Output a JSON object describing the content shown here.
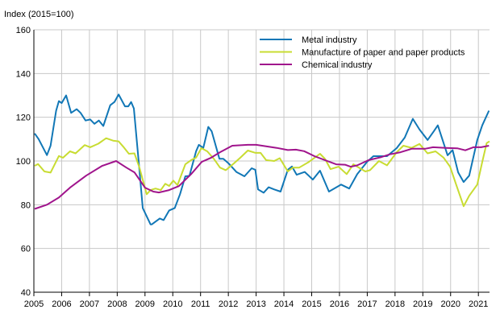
{
  "chart_data": {
    "type": "line",
    "title": "",
    "ylabel": "Index (2015=100)",
    "xlabel": "",
    "ylim": [
      40,
      160
    ],
    "yticks": [
      40,
      60,
      80,
      100,
      120,
      140,
      160
    ],
    "xlim": [
      2005,
      2021.4
    ],
    "xticks": [
      "2005",
      "2006",
      "2007",
      "2008",
      "2009",
      "2010",
      "2011",
      "2012",
      "2013",
      "2014",
      "2015",
      "2016",
      "2017",
      "2018",
      "2019",
      "2020",
      "2021"
    ],
    "grid": true,
    "legend_position": "top-right",
    "series": [
      {
        "name": "Metal industry",
        "color": "#1177b6",
        "points": [
          [
            2005.03,
            112.6
          ],
          [
            2005.17,
            110
          ],
          [
            2005.47,
            102.7
          ],
          [
            2005.6,
            107
          ],
          [
            2005.8,
            123
          ],
          [
            2005.9,
            127.4
          ],
          [
            2006.0,
            126.5
          ],
          [
            2006.16,
            130
          ],
          [
            2006.34,
            122
          ],
          [
            2006.54,
            123.7
          ],
          [
            2006.68,
            122
          ],
          [
            2006.86,
            118.5
          ],
          [
            2007.03,
            119
          ],
          [
            2007.18,
            117
          ],
          [
            2007.34,
            118.5
          ],
          [
            2007.5,
            116
          ],
          [
            2007.75,
            125.5
          ],
          [
            2007.9,
            127
          ],
          [
            2008.05,
            130.4
          ],
          [
            2008.28,
            125
          ],
          [
            2008.4,
            125
          ],
          [
            2008.5,
            127
          ],
          [
            2008.6,
            124
          ],
          [
            2008.77,
            100
          ],
          [
            2008.92,
            78.5
          ],
          [
            2009.2,
            71
          ],
          [
            2009.24,
            71
          ],
          [
            2009.53,
            73.7
          ],
          [
            2009.67,
            73
          ],
          [
            2009.87,
            77.4
          ],
          [
            2010.07,
            78.5
          ],
          [
            2010.26,
            84.8
          ],
          [
            2010.45,
            93
          ],
          [
            2010.6,
            93.2
          ],
          [
            2010.84,
            104.5
          ],
          [
            2010.94,
            107.4
          ],
          [
            2011.1,
            106
          ],
          [
            2011.28,
            115.6
          ],
          [
            2011.4,
            113.6
          ],
          [
            2011.68,
            101
          ],
          [
            2011.82,
            101
          ],
          [
            2012.0,
            99
          ],
          [
            2012.29,
            95
          ],
          [
            2012.58,
            93
          ],
          [
            2012.84,
            96.7
          ],
          [
            2012.97,
            96
          ],
          [
            2013.07,
            87
          ],
          [
            2013.27,
            85.5
          ],
          [
            2013.45,
            88
          ],
          [
            2013.65,
            87
          ],
          [
            2013.88,
            86
          ],
          [
            2014.14,
            96
          ],
          [
            2014.29,
            97.5
          ],
          [
            2014.46,
            93.7
          ],
          [
            2014.75,
            95
          ],
          [
            2015.04,
            91.5
          ],
          [
            2015.3,
            95.6
          ],
          [
            2015.62,
            86
          ],
          [
            2016.06,
            89.2
          ],
          [
            2016.35,
            87.4
          ],
          [
            2016.64,
            94
          ],
          [
            2016.99,
            99.6
          ],
          [
            2017.22,
            102.2
          ],
          [
            2017.71,
            102.2
          ],
          [
            2018.06,
            105.9
          ],
          [
            2018.35,
            110.7
          ],
          [
            2018.64,
            119.3
          ],
          [
            2018.88,
            114.4
          ],
          [
            2019.17,
            109.6
          ],
          [
            2019.4,
            113.7
          ],
          [
            2019.54,
            116.3
          ],
          [
            2019.89,
            102.6
          ],
          [
            2020.07,
            105
          ],
          [
            2020.27,
            94.8
          ],
          [
            2020.47,
            90.4
          ],
          [
            2020.67,
            93.3
          ],
          [
            2020.96,
            109.6
          ],
          [
            2021.14,
            116.3
          ],
          [
            2021.38,
            123
          ]
        ]
      },
      {
        "name": "Manufacture of paper and paper products",
        "color": "#c8dc32",
        "points": [
          [
            2005.03,
            97.8
          ],
          [
            2005.15,
            98.6
          ],
          [
            2005.38,
            95.2
          ],
          [
            2005.6,
            94.7
          ],
          [
            2005.9,
            102.3
          ],
          [
            2006.05,
            101.5
          ],
          [
            2006.3,
            104.4
          ],
          [
            2006.5,
            103.5
          ],
          [
            2006.83,
            107.3
          ],
          [
            2007.03,
            106.3
          ],
          [
            2007.32,
            107.9
          ],
          [
            2007.6,
            110.4
          ],
          [
            2007.85,
            109.3
          ],
          [
            2008.05,
            109
          ],
          [
            2008.22,
            106.5
          ],
          [
            2008.42,
            103.3
          ],
          [
            2008.62,
            103.5
          ],
          [
            2008.8,
            97
          ],
          [
            2009.06,
            84.8
          ],
          [
            2009.2,
            86.7
          ],
          [
            2009.38,
            87.4
          ],
          [
            2009.57,
            86.7
          ],
          [
            2009.73,
            89.6
          ],
          [
            2009.87,
            88.6
          ],
          [
            2010.02,
            91
          ],
          [
            2010.17,
            89
          ],
          [
            2010.45,
            98.5
          ],
          [
            2010.66,
            100.4
          ],
          [
            2010.84,
            101.6
          ],
          [
            2011.03,
            105.9
          ],
          [
            2011.24,
            104.4
          ],
          [
            2011.48,
            101
          ],
          [
            2011.7,
            97
          ],
          [
            2011.91,
            95.8
          ],
          [
            2012.2,
            98.9
          ],
          [
            2012.43,
            101.5
          ],
          [
            2012.7,
            104.8
          ],
          [
            2012.98,
            103.7
          ],
          [
            2013.16,
            103.7
          ],
          [
            2013.36,
            100.4
          ],
          [
            2013.65,
            100
          ],
          [
            2013.85,
            101.3
          ],
          [
            2014.14,
            95.2
          ],
          [
            2014.32,
            97
          ],
          [
            2014.55,
            97
          ],
          [
            2014.9,
            99.6
          ],
          [
            2015.3,
            103.3
          ],
          [
            2015.48,
            101
          ],
          [
            2015.68,
            96.3
          ],
          [
            2015.97,
            97.4
          ],
          [
            2016.26,
            94
          ],
          [
            2016.5,
            98.5
          ],
          [
            2016.93,
            95.2
          ],
          [
            2017.1,
            95.8
          ],
          [
            2017.42,
            100
          ],
          [
            2017.71,
            98
          ],
          [
            2018.06,
            104
          ],
          [
            2018.3,
            107
          ],
          [
            2018.6,
            106
          ],
          [
            2018.88,
            107.8
          ],
          [
            2019.17,
            103.5
          ],
          [
            2019.46,
            104.4
          ],
          [
            2019.75,
            101.5
          ],
          [
            2019.98,
            97.4
          ],
          [
            2020.19,
            89.6
          ],
          [
            2020.4,
            81.9
          ],
          [
            2020.47,
            79.3
          ],
          [
            2020.67,
            84.1
          ],
          [
            2020.96,
            89.2
          ],
          [
            2021.14,
            99.6
          ],
          [
            2021.3,
            108.2
          ],
          [
            2021.4,
            109
          ]
        ]
      },
      {
        "name": "Chemical industry",
        "color": "#a0148c",
        "points": [
          [
            2005.03,
            78.1
          ],
          [
            2005.47,
            80
          ],
          [
            2005.9,
            83.3
          ],
          [
            2006.3,
            87.8
          ],
          [
            2006.88,
            93.3
          ],
          [
            2007.46,
            97.8
          ],
          [
            2007.96,
            100
          ],
          [
            2008.33,
            97
          ],
          [
            2008.62,
            94.8
          ],
          [
            2009.0,
            87.8
          ],
          [
            2009.3,
            86
          ],
          [
            2009.5,
            85.6
          ],
          [
            2009.87,
            86.7
          ],
          [
            2010.22,
            88.5
          ],
          [
            2010.66,
            94
          ],
          [
            2011.04,
            99.6
          ],
          [
            2011.38,
            101.5
          ],
          [
            2011.7,
            104
          ],
          [
            2012.14,
            107
          ],
          [
            2012.7,
            107.4
          ],
          [
            2013.0,
            107.4
          ],
          [
            2013.36,
            106.7
          ],
          [
            2013.74,
            106
          ],
          [
            2014.14,
            105
          ],
          [
            2014.43,
            105.2
          ],
          [
            2014.73,
            104.5
          ],
          [
            2015.1,
            102.2
          ],
          [
            2015.48,
            100.4
          ],
          [
            2015.88,
            98.5
          ],
          [
            2016.2,
            98.3
          ],
          [
            2016.4,
            97.4
          ],
          [
            2016.64,
            98
          ],
          [
            2017.05,
            100.4
          ],
          [
            2017.51,
            101.8
          ],
          [
            2017.8,
            103
          ],
          [
            2018.2,
            104
          ],
          [
            2018.6,
            105.6
          ],
          [
            2019.08,
            105.6
          ],
          [
            2019.37,
            106.3
          ],
          [
            2019.83,
            106
          ],
          [
            2020.24,
            105.8
          ],
          [
            2020.53,
            104.9
          ],
          [
            2020.82,
            106.3
          ],
          [
            2021.1,
            106.3
          ],
          [
            2021.38,
            107
          ]
        ]
      }
    ]
  }
}
